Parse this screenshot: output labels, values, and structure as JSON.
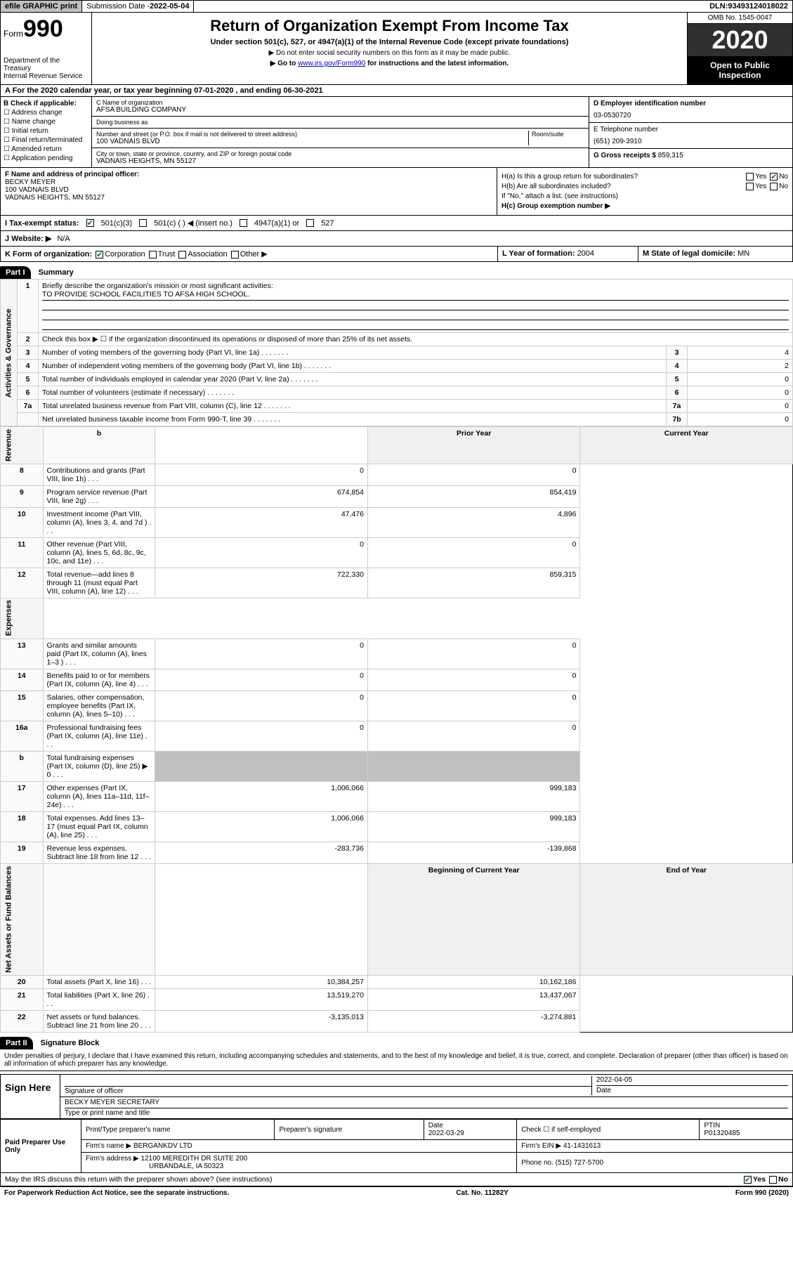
{
  "topbar": {
    "efile": "efile GRAPHIC print",
    "submission_label": "Submission Date - ",
    "submission_date": "2022-05-04",
    "dln_label": "DLN: ",
    "dln": "93493124018022"
  },
  "header": {
    "form": "Form",
    "form_num": "990",
    "dept": "Department of the Treasury",
    "irs": "Internal Revenue Service",
    "title": "Return of Organization Exempt From Income Tax",
    "subtitle": "Under section 501(c), 527, or 4947(a)(1) of the Internal Revenue Code (except private foundations)",
    "note1": "▶ Do not enter social security numbers on this form as it may be made public.",
    "note2_a": "▶ Go to ",
    "note2_link": "www.irs.gov/Form990",
    "note2_b": " for instructions and the latest information.",
    "omb": "OMB No. 1545-0047",
    "year": "2020",
    "open": "Open to Public Inspection"
  },
  "rowA": "A For the 2020 calendar year, or tax year beginning 07-01-2020    , and ending 06-30-2021",
  "colB": {
    "title": "B Check if applicable:",
    "items": [
      "Address change",
      "Name change",
      "Initial return",
      "Final return/terminated",
      "Amended return",
      "Application pending"
    ]
  },
  "colC": {
    "name_lbl": "C Name of organization",
    "name": "AFSA BUILDING COMPANY",
    "dba_lbl": "Doing business as",
    "dba": "",
    "addr_lbl": "Number and street (or P.O. box if mail is not delivered to street address)",
    "room_lbl": "Room/suite",
    "addr": "100 VADNAIS BLVD",
    "city_lbl": "City or town, state or province, country, and ZIP or foreign postal code",
    "city": "VADNAIS HEIGHTS, MN  55127"
  },
  "colD": {
    "d_lbl": "D Employer identification number",
    "d_val": "03-0530720",
    "e_lbl": "E Telephone number",
    "e_val": "(651) 209-3910",
    "g_lbl": "G Gross receipts $ ",
    "g_val": "859,315"
  },
  "fgh": {
    "f_lbl": "F  Name and address of principal officer:",
    "f_name": "BECKY MEYER",
    "f_addr1": "100 VADNAIS BLVD",
    "f_addr2": "VADNAIS HEIGHTS, MN  55127",
    "ha": "H(a)  Is this a group return for subordinates?",
    "hb": "H(b)  Are all subordinates included?",
    "hb_note": "If \"No,\" attach a list. (see instructions)",
    "hc": "H(c)  Group exemption number ▶",
    "yes": "Yes",
    "no": "No"
  },
  "rowI": {
    "lbl": "I  Tax-exempt status:",
    "o1": "501(c)(3)",
    "o2": "501(c) (   ) ◀ (insert no.)",
    "o3": "4947(a)(1) or",
    "o4": "527"
  },
  "rowJ": {
    "lbl": "J  Website: ▶",
    "val": "N/A"
  },
  "rowK": {
    "lbl": "K Form of organization:",
    "o1": "Corporation",
    "o2": "Trust",
    "o3": "Association",
    "o4": "Other ▶",
    "l_lbl": "L Year of formation: ",
    "l_val": "2004",
    "m_lbl": "M State of legal domicile: ",
    "m_val": "MN"
  },
  "part1": {
    "hdr": "Part I",
    "title": "Summary",
    "sides": {
      "ag": "Activities & Governance",
      "rev": "Revenue",
      "exp": "Expenses",
      "na": "Net Assets or Fund Balances"
    },
    "q1": "Briefly describe the organization's mission or most significant activities:",
    "mission": "TO PROVIDE SCHOOL FACILITIES TO AFSA HIGH SCHOOL.",
    "q2": "Check this box ▶ ☐  if the organization discontinued its operations or disposed of more than 25% of its net assets.",
    "rows_ag": [
      {
        "n": "3",
        "t": "Number of voting members of the governing body (Part VI, line 1a)",
        "c": "3",
        "v": "4"
      },
      {
        "n": "4",
        "t": "Number of independent voting members of the governing body (Part VI, line 1b)",
        "c": "4",
        "v": "2"
      },
      {
        "n": "5",
        "t": "Total number of individuals employed in calendar year 2020 (Part V, line 2a)",
        "c": "5",
        "v": "0"
      },
      {
        "n": "6",
        "t": "Total number of volunteers (estimate if necessary)",
        "c": "6",
        "v": "0"
      },
      {
        "n": "7a",
        "t": "Total unrelated business revenue from Part VIII, column (C), line 12",
        "c": "7a",
        "v": "0"
      },
      {
        "n": "",
        "t": "Net unrelated business taxable income from Form 990-T, line 39",
        "c": "7b",
        "v": "0"
      }
    ],
    "yr_hdr": {
      "b": "b",
      "prior": "Prior Year",
      "curr": "Current Year"
    },
    "rows_rev": [
      {
        "n": "8",
        "t": "Contributions and grants (Part VIII, line 1h)",
        "p": "0",
        "c": "0"
      },
      {
        "n": "9",
        "t": "Program service revenue (Part VIII, line 2g)",
        "p": "674,854",
        "c": "854,419"
      },
      {
        "n": "10",
        "t": "Investment income (Part VIII, column (A), lines 3, 4, and 7d )",
        "p": "47,476",
        "c": "4,896"
      },
      {
        "n": "11",
        "t": "Other revenue (Part VIII, column (A), lines 5, 6d, 8c, 9c, 10c, and 11e)",
        "p": "0",
        "c": "0"
      },
      {
        "n": "12",
        "t": "Total revenue—add lines 8 through 11 (must equal Part VIII, column (A), line 12)",
        "p": "722,330",
        "c": "859,315"
      }
    ],
    "rows_exp": [
      {
        "n": "13",
        "t": "Grants and similar amounts paid (Part IX, column (A), lines 1–3 )",
        "p": "0",
        "c": "0"
      },
      {
        "n": "14",
        "t": "Benefits paid to or for members (Part IX, column (A), line 4)",
        "p": "0",
        "c": "0"
      },
      {
        "n": "15",
        "t": "Salaries, other compensation, employee benefits (Part IX, column (A), lines 5–10)",
        "p": "0",
        "c": "0"
      },
      {
        "n": "16a",
        "t": "Professional fundraising fees (Part IX, column (A), line 11e)",
        "p": "0",
        "c": "0"
      },
      {
        "n": "b",
        "t": "Total fundraising expenses (Part IX, column (D), line 25) ▶ 0",
        "p": "",
        "c": "",
        "shade": true
      },
      {
        "n": "17",
        "t": "Other expenses (Part IX, column (A), lines 11a–11d, 11f–24e)",
        "p": "1,006,066",
        "c": "999,183"
      },
      {
        "n": "18",
        "t": "Total expenses. Add lines 13–17 (must equal Part IX, column (A), line 25)",
        "p": "1,006,066",
        "c": "999,183"
      },
      {
        "n": "19",
        "t": "Revenue less expenses. Subtract line 18 from line 12",
        "p": "-283,736",
        "c": "-139,868"
      }
    ],
    "na_hdr": {
      "b": "Beginning of Current Year",
      "e": "End of Year"
    },
    "rows_na": [
      {
        "n": "20",
        "t": "Total assets (Part X, line 16)",
        "p": "10,384,257",
        "c": "10,162,186"
      },
      {
        "n": "21",
        "t": "Total liabilities (Part X, line 26)",
        "p": "13,519,270",
        "c": "13,437,067"
      },
      {
        "n": "22",
        "t": "Net assets or fund balances. Subtract line 21 from line 20",
        "p": "-3,135,013",
        "c": "-3,274,881"
      }
    ]
  },
  "part2": {
    "hdr": "Part II",
    "title": "Signature Block",
    "perjury": "Under penalties of perjury, I declare that I have examined this return, including accompanying schedules and statements, and to the best of my knowledge and belief, it is true, correct, and complete. Declaration of preparer (other than officer) is based on all information of which preparer has any knowledge.",
    "sign_here": "Sign Here",
    "sig_lbl": "Signature of officer",
    "date_lbl": "Date",
    "sig_date": "2022-04-05",
    "name_lbl": "Type or print name and title",
    "name_val": "BECKY MEYER  SECRETARY",
    "paid": "Paid Preparer Use Only",
    "p_name_lbl": "Print/Type preparer's name",
    "p_sig_lbl": "Preparer's signature",
    "p_date_lbl": "Date",
    "p_date": "2022-03-29",
    "p_check": "Check ☐ if self-employed",
    "ptin_lbl": "PTIN",
    "ptin": "P01320485",
    "firm_name_lbl": "Firm's name    ▶ ",
    "firm_name": "BERGANKDV LTD",
    "firm_ein_lbl": "Firm's EIN ▶ ",
    "firm_ein": "41-1431613",
    "firm_addr_lbl": "Firm's address ▶ ",
    "firm_addr1": "12100 MEREDITH DR SUITE 200",
    "firm_addr2": "URBANDALE, IA  50323",
    "phone_lbl": "Phone no. ",
    "phone": "(515) 727-5700",
    "discuss": "May the IRS discuss this return with the preparer shown above? (see instructions)"
  },
  "footer": {
    "left": "For Paperwork Reduction Act Notice, see the separate instructions.",
    "mid": "Cat. No. 11282Y",
    "right": "Form 990 (2020)"
  }
}
